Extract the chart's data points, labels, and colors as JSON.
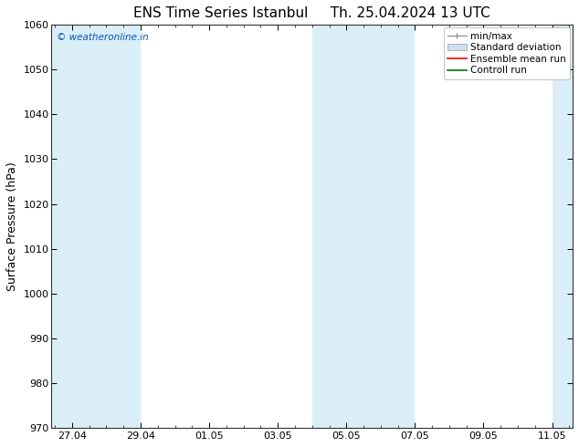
{
  "title_left": "ENS Time Series Istanbul",
  "title_right": "Th. 25.04.2024 13 UTC",
  "ylabel": "Surface Pressure (hPa)",
  "ylim": [
    970,
    1060
  ],
  "yticks": [
    970,
    980,
    990,
    1000,
    1010,
    1020,
    1030,
    1040,
    1050,
    1060
  ],
  "xtick_labels": [
    "27.04",
    "29.04",
    "01.05",
    "03.05",
    "05.05",
    "07.05",
    "09.05",
    "11.05"
  ],
  "watermark": "© weatheronline.in",
  "watermark_color": "#0055cc",
  "shade_color": "#daeef8",
  "legend_items": [
    {
      "label": "min/max",
      "color": "#999999",
      "type": "errorbar"
    },
    {
      "label": "Standard deviation",
      "color": "#cce0f0",
      "type": "rect"
    },
    {
      "label": "Ensemble mean run",
      "color": "#ff0000",
      "type": "line"
    },
    {
      "label": "Controll run",
      "color": "#007700",
      "type": "line"
    }
  ],
  "background_color": "#ffffff",
  "spine_color": "#333333",
  "title_fontsize": 11,
  "tick_fontsize": 8,
  "ylabel_fontsize": 9,
  "legend_fontsize": 7.5
}
